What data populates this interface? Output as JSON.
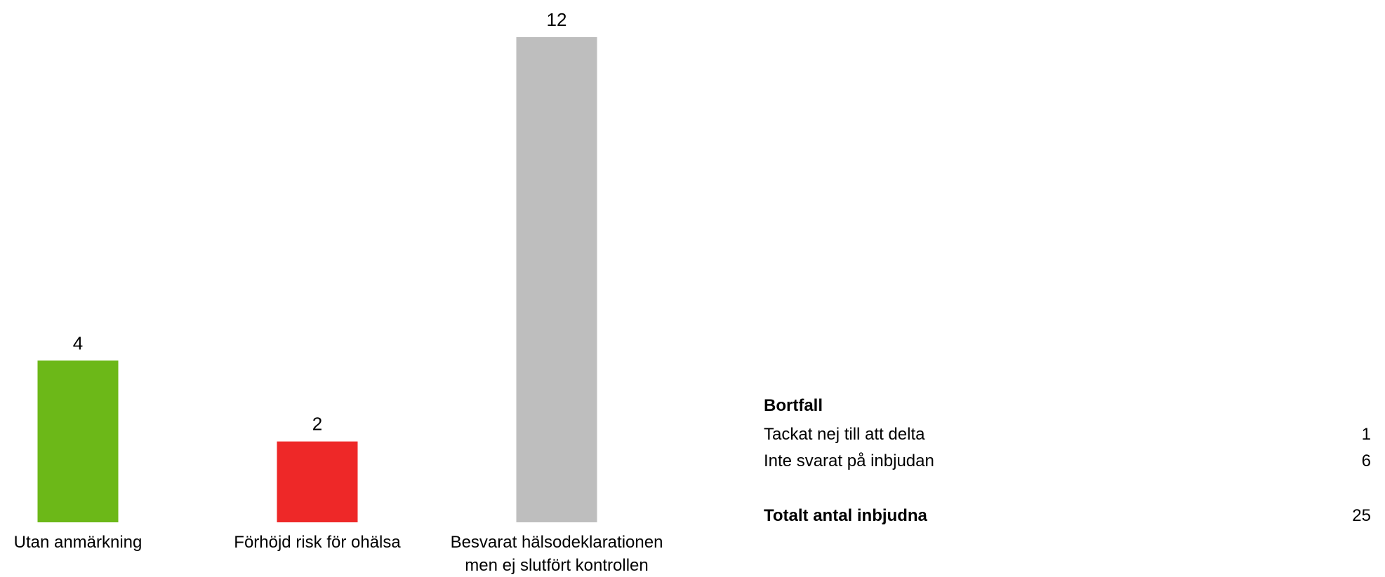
{
  "chart_data": {
    "type": "bar",
    "categories": [
      "Utan anmärkning",
      "Förhöjd risk för ohälsa",
      "Besvarat hälsodeklarationen men ej slutfört kontrollen"
    ],
    "category_lines": [
      [
        "Utan anmärkning"
      ],
      [
        "Förhöjd risk för ohälsa"
      ],
      [
        "Besvarat hälsodeklarationen",
        "men ej slutfört kontrollen"
      ]
    ],
    "values": [
      4,
      2,
      12
    ],
    "colors": [
      "#6CB818",
      "#EE2828",
      "#BEBEBE"
    ],
    "data_labels": [
      "4",
      "2",
      "12"
    ],
    "title": "",
    "xlabel": "",
    "ylabel": "",
    "ylim": [
      0,
      12
    ],
    "grid": false
  },
  "summary": {
    "heading": "Bortfall",
    "rows": [
      {
        "label": "Tackat nej till att delta",
        "value": "1"
      },
      {
        "label": "Inte svarat på inbjudan",
        "value": "6"
      }
    ],
    "total": {
      "label": "Totalt antal inbjudna",
      "value": "25"
    }
  }
}
